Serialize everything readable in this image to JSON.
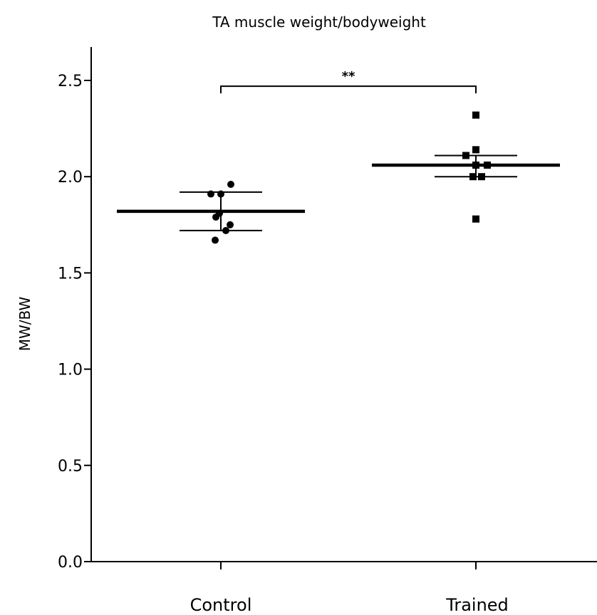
{
  "chart_data": {
    "type": "scatter",
    "title": "TA muscle weight/bodyweight",
    "xlabel": "",
    "ylabel": "MW/BW",
    "ylim": [
      0,
      2.6
    ],
    "yticks": [
      "0.0",
      "0.5",
      "1.0",
      "1.5",
      "2.0",
      "2.5"
    ],
    "categories": [
      "Control",
      "Trained"
    ],
    "groups": [
      {
        "name": "Control",
        "marker": "circle",
        "points": [
          1.96,
          1.91,
          1.91,
          1.81,
          1.79,
          1.75,
          1.72,
          1.67
        ],
        "mean": 1.82,
        "error_upper": 1.92,
        "error_lower": 1.72
      },
      {
        "name": "Trained",
        "marker": "square",
        "points": [
          2.32,
          2.14,
          2.11,
          2.06,
          2.06,
          2.0,
          2.0,
          1.78
        ],
        "mean": 2.06,
        "error_upper": 2.11,
        "error_lower": 2.0
      }
    ],
    "significance": {
      "label": "**",
      "between": [
        "Control",
        "Trained"
      ],
      "y": 2.47
    },
    "grid": false,
    "legend": "none"
  }
}
